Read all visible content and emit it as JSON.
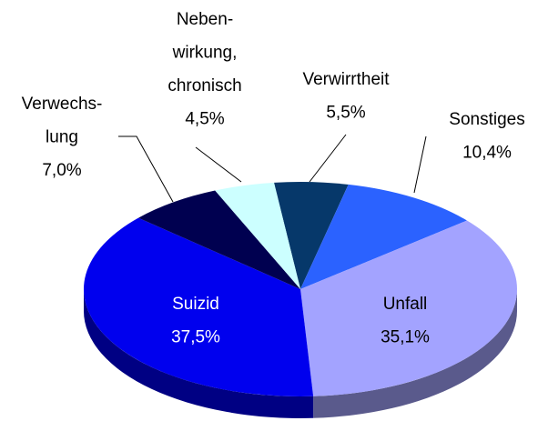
{
  "chart_data": {
    "type": "pie3d",
    "categories": [
      "Verwirrtheit",
      "Sonstiges",
      "Unfall",
      "Suizid",
      "Verwechs-\nlung",
      "Neben-\nwirkung,\nchronisch"
    ],
    "values": [
      5.5,
      10.4,
      35.1,
      37.5,
      7.0,
      4.5
    ],
    "value_labels": [
      "5,5%",
      "10,4%",
      "35,1%",
      "37,5%",
      "7,0%",
      "4,5%"
    ],
    "colors": [
      "#06386a",
      "#2b62ff",
      "#a3a3ff",
      "#0000ee",
      "#000050",
      "#ccffff"
    ]
  }
}
